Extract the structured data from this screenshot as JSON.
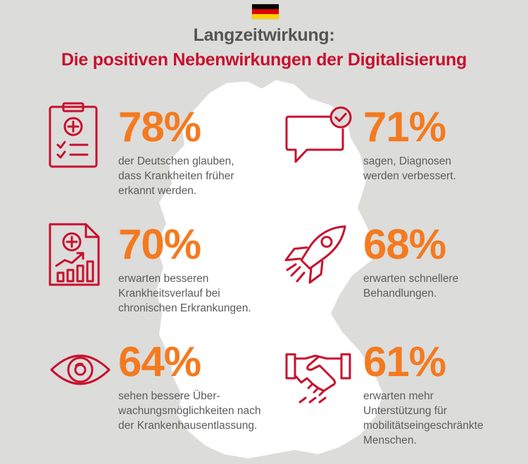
{
  "colors": {
    "background": "#dcdcda",
    "map": "#ffffff",
    "accent_red": "#c8102e",
    "accent_orange": "#f47a1f",
    "title_gray": "#555555",
    "text_gray": "#5c5c5c",
    "flag_black": "#000000",
    "flag_red": "#dd0000",
    "flag_gold": "#ffce00"
  },
  "header": {
    "flag": "germany-flag",
    "title": "Langzeitwirkung:",
    "subtitle": "Die positiven Nebenwirkungen der Digitalisierung"
  },
  "stats": [
    {
      "icon": "clipboard-checklist-icon",
      "percent": "78%",
      "text": "der Deutschen glauben,\ndass Krankheiten früher\nerkannt werden."
    },
    {
      "icon": "speech-bubble-check-icon",
      "percent": "71%",
      "text": "sagen, Diagnosen\nwerden verbessert."
    },
    {
      "icon": "document-chart-icon",
      "percent": "70%",
      "text": "erwarten besseren\nKrankheitsverlauf bei\nchronischen Erkrankungen."
    },
    {
      "icon": "rocket-icon",
      "percent": "68%",
      "text": "erwarten schnellere\nBehandlungen."
    },
    {
      "icon": "eye-icon",
      "percent": "64%",
      "text": "sehen bessere Über-\nwachungsmöglichkeiten nach\nder Krankenhausentlassung."
    },
    {
      "icon": "handshake-icon",
      "percent": "61%",
      "text": "erwarten mehr\nUnterstützung für\nmobilitätseingeschränkte\nMenschen."
    }
  ]
}
